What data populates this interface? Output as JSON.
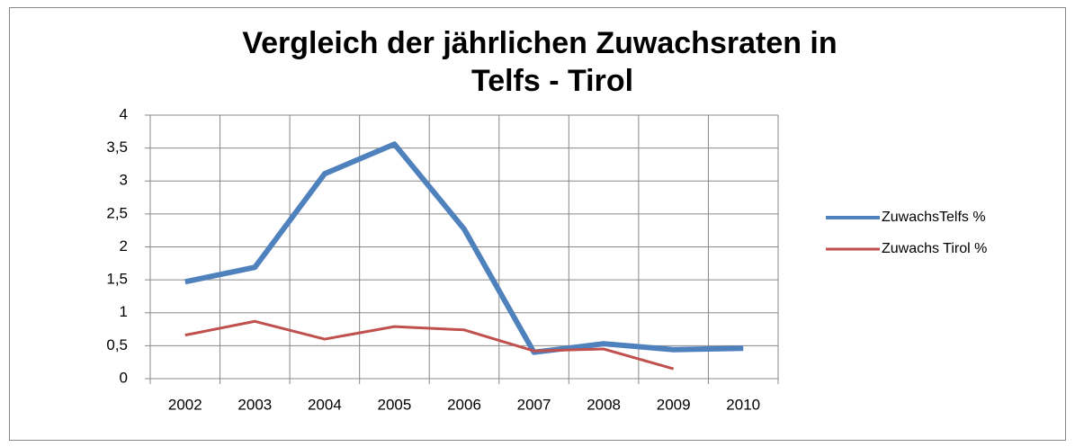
{
  "chart_data": {
    "type": "line",
    "title": [
      "Vergleich der jährlichen Zuwachsraten in",
      "Telfs - Tirol"
    ],
    "categories": [
      "2002",
      "2003",
      "2004",
      "2005",
      "2006",
      "2007",
      "2008",
      "2009",
      "2010"
    ],
    "series": [
      {
        "name": "ZuwachsTelfs %",
        "color": "#4f81bd",
        "width": 6,
        "values": [
          1.47,
          1.69,
          3.11,
          3.56,
          2.27,
          0.4,
          0.53,
          0.44,
          0.46
        ]
      },
      {
        "name": "Zuwachs Tirol %",
        "color": "#c0504d",
        "width": 3,
        "values": [
          0.66,
          0.87,
          0.6,
          0.79,
          0.74,
          0.42,
          0.45,
          0.15,
          null
        ]
      }
    ],
    "ylim": [
      0,
      4
    ],
    "yticks": [
      0,
      {
        "value": 0.5,
        "label": "0,5"
      },
      1,
      {
        "value": 1.5,
        "label": "1,5"
      },
      2,
      {
        "value": 2.5,
        "label": "2,5"
      },
      3,
      {
        "value": 3.5,
        "label": "3,5"
      },
      4
    ],
    "grid": true,
    "legend": "right"
  }
}
